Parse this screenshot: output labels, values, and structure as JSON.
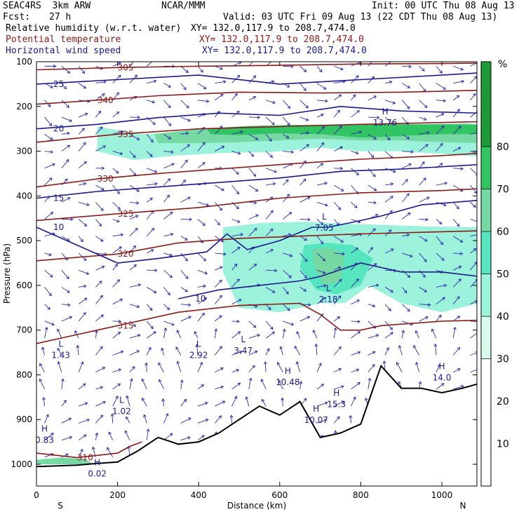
{
  "header": {
    "model": "SEAC4RS  3km ARW",
    "source": "NCAR/MMM",
    "init": "Init: 00 UTC Thu 08 Aug 13",
    "fcst_label": "Fcst:",
    "fcst_value": "27 h",
    "valid": "Valid: 03 UTC Fri 09 Aug 13 (22 CDT Thu 08 Aug 13)",
    "fields": [
      {
        "name": "Relative humidity (w.r.t. water)",
        "xy": "XY= 132.0,117.9 to 208.7,474.0",
        "color": "#000000"
      },
      {
        "name": "Potential temperature",
        "xy": "XY= 132.0,117.9 to 208.7,474.0",
        "color": "#8b1a1a"
      },
      {
        "name": "Horizontal wind speed",
        "xy": "XY= 132.0,117.9 to 208.7,474.0",
        "color": "#1a1a8c"
      }
    ]
  },
  "chart_data": {
    "type": "heatmap",
    "xlabel": "Distance (km)",
    "ylabel": "Pressure (hPa)",
    "xlim": [
      0,
      1090
    ],
    "ylim": [
      1050,
      100
    ],
    "x_ticks": [
      "0",
      "200",
      "400",
      "600",
      "800",
      "1000"
    ],
    "y_ticks": [
      "100",
      "200",
      "300",
      "400",
      "500",
      "600",
      "700",
      "800",
      "900",
      "1000"
    ],
    "x_ends": {
      "left": "S",
      "right": "N"
    },
    "colorbar": {
      "unit": "%",
      "ticks": [
        "10",
        "20",
        "30",
        "40",
        "50",
        "60",
        "70",
        "80"
      ],
      "levels": [
        0,
        30,
        40,
        50,
        60,
        70,
        80,
        100
      ],
      "colors": [
        "#ffffff",
        "#d8fbee",
        "#9cf2da",
        "#55e6bf",
        "#76d9a3",
        "#31c462",
        "#1b9a35"
      ]
    },
    "rh_regions": [
      {
        "level": 40,
        "points": [
          [
            150,
            245
          ],
          [
            260,
            262
          ],
          [
            340,
            258
          ],
          [
            460,
            250
          ],
          [
            580,
            243
          ],
          [
            700,
            240
          ],
          [
            800,
            243
          ],
          [
            900,
            240
          ],
          [
            1000,
            246
          ],
          [
            1090,
            248
          ],
          [
            1090,
            312
          ],
          [
            1000,
            306
          ],
          [
            900,
            300
          ],
          [
            800,
            300
          ],
          [
            700,
            292
          ],
          [
            580,
            302
          ],
          [
            460,
            304
          ],
          [
            340,
            310
          ],
          [
            240,
            320
          ],
          [
            150,
            300
          ]
        ]
      },
      {
        "level": 60,
        "points": [
          [
            290,
            262
          ],
          [
            400,
            250
          ],
          [
            520,
            244
          ],
          [
            640,
            241
          ],
          [
            760,
            242
          ],
          [
            860,
            240
          ],
          [
            960,
            240
          ],
          [
            1060,
            238
          ],
          [
            1090,
            240
          ],
          [
            1090,
            282
          ],
          [
            1000,
            280
          ],
          [
            900,
            276
          ],
          [
            800,
            276
          ],
          [
            700,
            272
          ],
          [
            600,
            276
          ],
          [
            500,
            280
          ],
          [
            400,
            282
          ],
          [
            300,
            282
          ]
        ]
      },
      {
        "level": 70,
        "points": [
          [
            420,
            250
          ],
          [
            520,
            244
          ],
          [
            640,
            242
          ],
          [
            760,
            242
          ],
          [
            880,
            240
          ],
          [
            1000,
            240
          ],
          [
            1090,
            241
          ],
          [
            1090,
            262
          ],
          [
            1000,
            262
          ],
          [
            900,
            266
          ],
          [
            800,
            270
          ],
          [
            700,
            262
          ],
          [
            600,
            260
          ],
          [
            500,
            264
          ],
          [
            430,
            262
          ]
        ]
      },
      {
        "level": 40,
        "points": [
          [
            460,
            470
          ],
          [
            560,
            460
          ],
          [
            660,
            458
          ],
          [
            760,
            462
          ],
          [
            860,
            465
          ],
          [
            960,
            468
          ],
          [
            1090,
            470
          ],
          [
            1090,
            640
          ],
          [
            1000,
            660
          ],
          [
            900,
            640
          ],
          [
            820,
            600
          ],
          [
            760,
            640
          ],
          [
            700,
            640
          ],
          [
            600,
            660
          ],
          [
            500,
            650
          ],
          [
            460,
            570
          ]
        ]
      },
      {
        "level": 50,
        "points": [
          [
            660,
            510
          ],
          [
            720,
            505
          ],
          [
            780,
            510
          ],
          [
            830,
            540
          ],
          [
            800,
            600
          ],
          [
            740,
            620
          ],
          [
            690,
            610
          ],
          [
            650,
            560
          ]
        ]
      },
      {
        "level": 60,
        "points": [
          [
            680,
            520
          ],
          [
            720,
            515
          ],
          [
            760,
            530
          ],
          [
            750,
            590
          ],
          [
            710,
            600
          ],
          [
            685,
            560
          ]
        ]
      },
      {
        "level": 60,
        "points": [
          [
            0,
            990
          ],
          [
            60,
            985
          ],
          [
            120,
            988
          ],
          [
            140,
            1000
          ],
          [
            0,
            1000
          ]
        ]
      }
    ],
    "theta_contours": [
      {
        "label": "305",
        "value": 305,
        "points": [
          [
            0,
            118
          ],
          [
            200,
            113
          ],
          [
            400,
            110
          ],
          [
            600,
            108
          ],
          [
            800,
            105
          ],
          [
            1000,
            104
          ],
          [
            1090,
            103
          ]
        ]
      },
      {
        "label": "340",
        "value": 340,
        "points": [
          [
            0,
            195
          ],
          [
            150,
            186
          ],
          [
            300,
            176
          ],
          [
            500,
            168
          ],
          [
            700,
            170
          ],
          [
            900,
            168
          ],
          [
            1090,
            164
          ]
        ]
      },
      {
        "label": "335",
        "value": 335,
        "points": [
          [
            0,
            280
          ],
          [
            200,
            262
          ],
          [
            400,
            250
          ],
          [
            600,
            245
          ],
          [
            800,
            240
          ],
          [
            1000,
            236
          ],
          [
            1090,
            234
          ]
        ]
      },
      {
        "label": "330",
        "value": 330,
        "points": [
          [
            0,
            380
          ],
          [
            150,
            362
          ],
          [
            300,
            350
          ],
          [
            450,
            340
          ],
          [
            600,
            330
          ],
          [
            800,
            318
          ],
          [
            1000,
            310
          ],
          [
            1090,
            305
          ]
        ]
      },
      {
        "label": "325",
        "value": 325,
        "points": [
          [
            0,
            455
          ],
          [
            200,
            440
          ],
          [
            400,
            426
          ],
          [
            600,
            405
          ],
          [
            800,
            393
          ],
          [
            1000,
            388
          ],
          [
            1090,
            384
          ]
        ]
      },
      {
        "label": "320",
        "value": 320,
        "points": [
          [
            0,
            545
          ],
          [
            200,
            530
          ],
          [
            350,
            505
          ],
          [
            500,
            495
          ],
          [
            650,
            490
          ],
          [
            800,
            485
          ],
          [
            1000,
            480
          ],
          [
            1090,
            478
          ]
        ]
      },
      {
        "label": "315",
        "value": 315,
        "points": [
          [
            0,
            730
          ],
          [
            200,
            690
          ],
          [
            350,
            660
          ],
          [
            500,
            645
          ],
          [
            650,
            640
          ],
          [
            700,
            665
          ],
          [
            750,
            700
          ],
          [
            800,
            700
          ],
          [
            850,
            690
          ],
          [
            1000,
            680
          ],
          [
            1090,
            678
          ]
        ]
      },
      {
        "label": "310",
        "value": 310,
        "points": [
          [
            0,
            975
          ],
          [
            100,
            985
          ],
          [
            200,
            975
          ],
          [
            230,
            960
          ],
          [
            260,
            950
          ]
        ]
      }
    ],
    "wind_contours": [
      {
        "label": "25",
        "value": 25,
        "points": [
          [
            0,
            150
          ],
          [
            200,
            140
          ],
          [
            400,
            130
          ],
          [
            600,
            150
          ],
          [
            800,
            140
          ],
          [
            1000,
            130
          ],
          [
            1090,
            125
          ]
        ]
      },
      {
        "label": "20",
        "value": 20,
        "points": [
          [
            0,
            250
          ],
          [
            150,
            240
          ],
          [
            300,
            225
          ],
          [
            450,
            215
          ],
          [
            600,
            220
          ],
          [
            750,
            200
          ],
          [
            900,
            210
          ],
          [
            1090,
            215
          ]
        ]
      },
      {
        "label": "15",
        "value": 15,
        "points": [
          [
            0,
            405
          ],
          [
            150,
            390
          ],
          [
            300,
            380
          ],
          [
            450,
            370
          ],
          [
            600,
            360
          ],
          [
            750,
            345
          ],
          [
            900,
            340
          ],
          [
            1090,
            330
          ]
        ]
      },
      {
        "label": "10",
        "value": 10,
        "points": [
          [
            0,
            470
          ],
          [
            100,
            510
          ],
          [
            200,
            550
          ],
          [
            300,
            540
          ],
          [
            420,
            525
          ],
          [
            470,
            485
          ],
          [
            520,
            520
          ],
          [
            600,
            500
          ],
          [
            680,
            470
          ],
          [
            720,
            470
          ],
          [
            800,
            455
          ],
          [
            850,
            445
          ],
          [
            950,
            420
          ],
          [
            1090,
            410
          ]
        ]
      },
      {
        "label": "10",
        "value": 10,
        "points": [
          [
            350,
            630
          ],
          [
            450,
            610
          ],
          [
            550,
            600
          ],
          [
            650,
            590
          ],
          [
            700,
            580
          ],
          [
            800,
            550
          ],
          [
            900,
            570
          ],
          [
            1000,
            570
          ],
          [
            1090,
            580
          ]
        ]
      }
    ],
    "extrema": [
      {
        "kind": "L",
        "label": "1.43",
        "x": 60,
        "p": 750
      },
      {
        "kind": "L",
        "label": "2.92",
        "x": 400,
        "p": 750
      },
      {
        "kind": "L",
        "label": "3.47",
        "x": 510,
        "p": 740
      },
      {
        "kind": "L",
        "label": "1.02",
        "x": 210,
        "p": 875
      },
      {
        "kind": "L",
        "label": "7.05",
        "x": 710,
        "p": 465
      },
      {
        "kind": "L",
        "label": "2.18",
        "x": 720,
        "p": 625
      },
      {
        "kind": "H",
        "label": "10.48",
        "x": 620,
        "p": 810
      },
      {
        "kind": "H",
        "label": "15.3",
        "x": 740,
        "p": 860
      },
      {
        "kind": "H",
        "label": "10.07",
        "x": 690,
        "p": 895
      },
      {
        "kind": "H",
        "label": "13.76",
        "x": 860,
        "p": 230
      },
      {
        "kind": "H",
        "label": "14.0",
        "x": 1000,
        "p": 800
      },
      {
        "kind": "H",
        "label": "0.02",
        "x": 150,
        "p": 1015
      },
      {
        "kind": "H",
        "label": "0.83",
        "x": 20,
        "p": 940
      }
    ],
    "terrain": [
      [
        0,
        1005
      ],
      [
        100,
        1002
      ],
      [
        150,
        998
      ],
      [
        200,
        995
      ],
      [
        250,
        970
      ],
      [
        300,
        940
      ],
      [
        350,
        955
      ],
      [
        400,
        950
      ],
      [
        450,
        930
      ],
      [
        500,
        900
      ],
      [
        550,
        870
      ],
      [
        600,
        890
      ],
      [
        650,
        860
      ],
      [
        700,
        940
      ],
      [
        750,
        930
      ],
      [
        800,
        910
      ],
      [
        850,
        780
      ],
      [
        900,
        830
      ],
      [
        950,
        830
      ],
      [
        1000,
        840
      ],
      [
        1050,
        830
      ],
      [
        1090,
        820
      ]
    ]
  }
}
